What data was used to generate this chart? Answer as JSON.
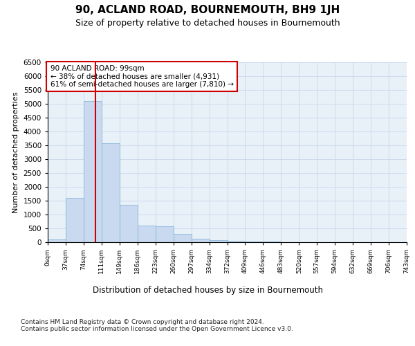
{
  "title": "90, ACLAND ROAD, BOURNEMOUTH, BH9 1JH",
  "subtitle": "Size of property relative to detached houses in Bournemouth",
  "xlabel": "Distribution of detached houses by size in Bournemouth",
  "ylabel": "Number of detached properties",
  "footer_line1": "Contains HM Land Registry data © Crown copyright and database right 2024.",
  "footer_line2": "Contains public sector information licensed under the Open Government Licence v3.0.",
  "bar_color": "#c9d9f0",
  "bar_edge_color": "#7bafd4",
  "grid_color": "#c8d8ec",
  "background_color": "#e8f0f8",
  "property_line_color": "#cc0000",
  "property_sqm": 99,
  "annotation_line1": "90 ACLAND ROAD: 99sqm",
  "annotation_line2": "← 38% of detached houses are smaller (4,931)",
  "annotation_line3": "61% of semi-detached houses are larger (7,810) →",
  "annotation_box_color": "#ffffff",
  "annotation_border_color": "#cc0000",
  "bin_edges": [
    0,
    37,
    74,
    111,
    148,
    185,
    222,
    259,
    296,
    333,
    370,
    407,
    444,
    481,
    518,
    555,
    592,
    629,
    666,
    703,
    740
  ],
  "bar_heights": [
    100,
    1600,
    5100,
    3580,
    1350,
    600,
    580,
    300,
    130,
    80,
    55,
    35,
    25,
    10,
    5,
    3,
    2,
    1,
    1,
    0
  ],
  "tick_labels": [
    "0sqm",
    "37sqm",
    "74sqm",
    "111sqm",
    "149sqm",
    "186sqm",
    "223sqm",
    "260sqm",
    "297sqm",
    "334sqm",
    "372sqm",
    "409sqm",
    "446sqm",
    "483sqm",
    "520sqm",
    "557sqm",
    "594sqm",
    "632sqm",
    "669sqm",
    "706sqm",
    "743sqm"
  ],
  "ylim": [
    0,
    6500
  ],
  "yticks": [
    0,
    500,
    1000,
    1500,
    2000,
    2500,
    3000,
    3500,
    4000,
    4500,
    5000,
    5500,
    6000,
    6500
  ]
}
